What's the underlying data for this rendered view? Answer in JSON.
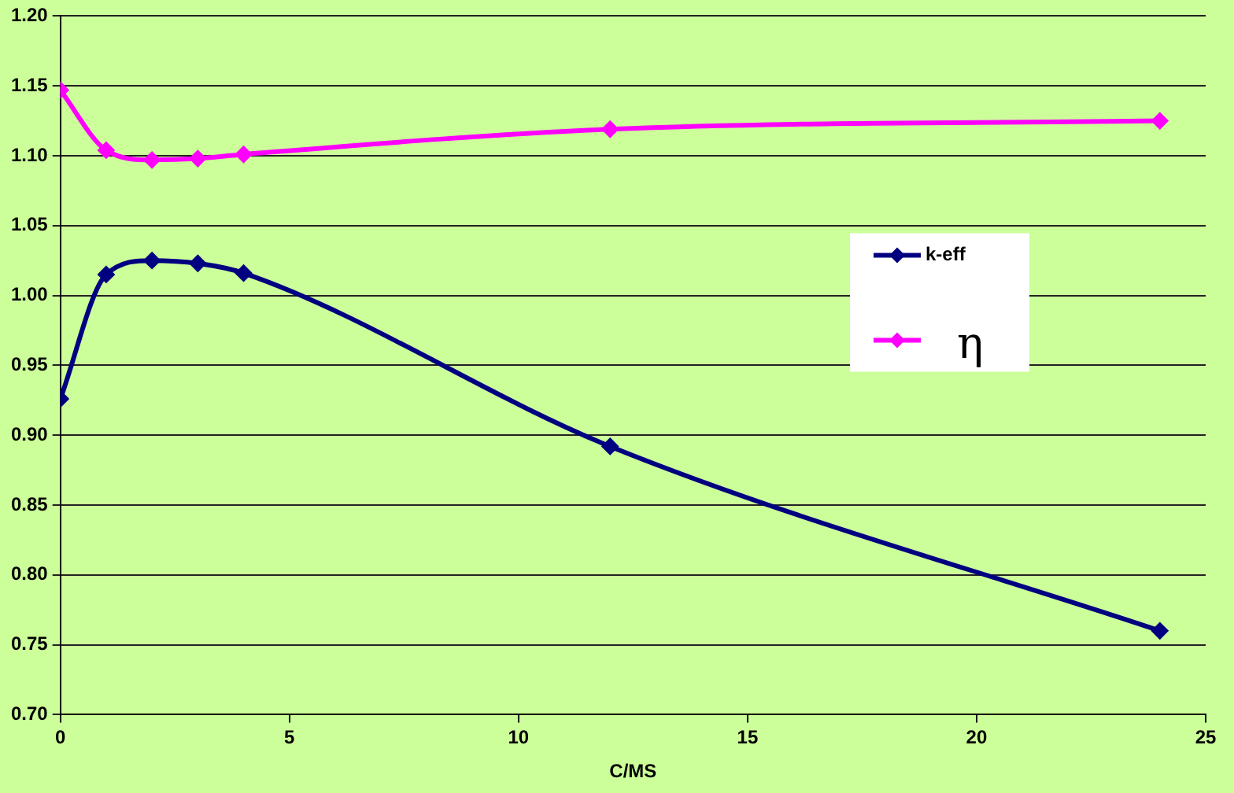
{
  "chart_data": {
    "type": "line",
    "xlabel": "C/MS",
    "x": [
      0,
      1,
      2,
      3,
      4,
      12,
      24
    ],
    "series": [
      {
        "name": "k-eff",
        "color": "#000080",
        "values": [
          0.926,
          1.015,
          1.025,
          1.023,
          1.016,
          0.892,
          0.76
        ]
      },
      {
        "name": "η",
        "color": "#ff00ff",
        "values": [
          1.147,
          1.104,
          1.097,
          1.098,
          1.101,
          1.119,
          1.125
        ]
      }
    ],
    "xlim": [
      0,
      25
    ],
    "xticks": [
      0,
      5,
      10,
      15,
      20,
      25
    ],
    "ylim": [
      0.7,
      1.2
    ],
    "yticks": [
      {
        "value": 0.7,
        "label": "0.70"
      },
      {
        "value": 0.75,
        "label": "0.75"
      },
      {
        "value": 0.8,
        "label": "0.80"
      },
      {
        "value": 0.85,
        "label": "0.85"
      },
      {
        "value": 0.9,
        "label": "0.90"
      },
      {
        "value": 0.95,
        "label": "0.95"
      },
      {
        "value": 1.0,
        "label": "1.00"
      },
      {
        "value": 1.05,
        "label": "1.05"
      },
      {
        "value": 1.1,
        "label": "1.10"
      },
      {
        "value": 1.15,
        "label": "1.15"
      },
      {
        "value": 1.2,
        "label": "1.20"
      }
    ],
    "grid": "y",
    "legend": "right",
    "marker": "diamond",
    "line_style": "solid"
  }
}
